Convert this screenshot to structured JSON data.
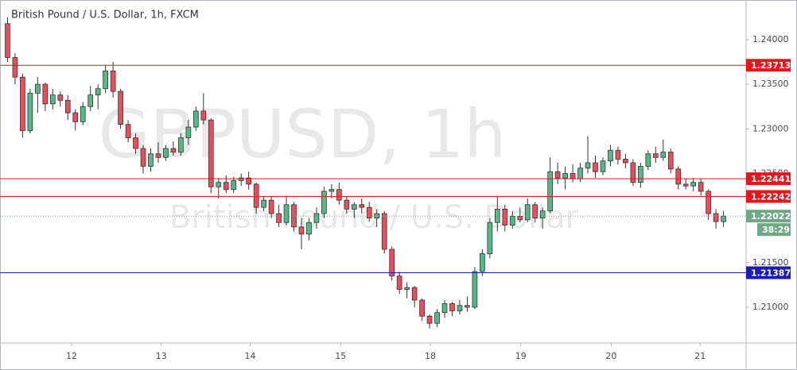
{
  "chart_data": {
    "type": "candlestick",
    "title": "British Pound / U.S. Dollar, 1h, FXCM",
    "watermark": "GBPUSD, 1h",
    "watermark_subtitle": "British Pound / U.S. Dollar",
    "up_color": "#53b987",
    "down_color": "#eb4d5c",
    "candles": [
      [
        1.2418,
        1.2425,
        1.2375,
        1.238
      ],
      [
        1.238,
        1.2385,
        1.235,
        1.2358
      ],
      [
        1.2358,
        1.2362,
        1.229,
        1.2298
      ],
      [
        1.2298,
        1.2345,
        1.2295,
        1.234
      ],
      [
        1.234,
        1.2358,
        1.2318,
        1.235
      ],
      [
        1.235,
        1.2352,
        1.232,
        1.2328
      ],
      [
        1.2328,
        1.2345,
        1.2322,
        1.2338
      ],
      [
        1.2338,
        1.2342,
        1.2325,
        1.2332
      ],
      [
        1.2332,
        1.2338,
        1.231,
        1.2318
      ],
      [
        1.2318,
        1.2322,
        1.2298,
        1.2308
      ],
      [
        1.2308,
        1.233,
        1.2304,
        1.2325
      ],
      [
        1.2325,
        1.2348,
        1.232,
        1.2338
      ],
      [
        1.2338,
        1.235,
        1.2322,
        1.2345
      ],
      [
        1.2345,
        1.2372,
        1.234,
        1.2365
      ],
      [
        1.2365,
        1.2375,
        1.2335,
        1.2342
      ],
      [
        1.2342,
        1.2345,
        1.23,
        1.2305
      ],
      [
        1.2305,
        1.231,
        1.2285,
        1.229
      ],
      [
        1.229,
        1.2295,
        1.2272,
        1.2278
      ],
      [
        1.2278,
        1.2282,
        1.225,
        1.2258
      ],
      [
        1.2258,
        1.2278,
        1.2252,
        1.2272
      ],
      [
        1.2272,
        1.2285,
        1.2262,
        1.2268
      ],
      [
        1.2268,
        1.2282,
        1.2264,
        1.2278
      ],
      [
        1.2278,
        1.2286,
        1.227,
        1.2274
      ],
      [
        1.2274,
        1.2295,
        1.227,
        1.229
      ],
      [
        1.229,
        1.231,
        1.2282,
        1.2302
      ],
      [
        1.2302,
        1.2325,
        1.2298,
        1.232
      ],
      [
        1.232,
        1.234,
        1.2305,
        1.231
      ],
      [
        1.231,
        1.2312,
        1.2228,
        1.2235
      ],
      [
        1.2235,
        1.2245,
        1.2222,
        1.224
      ],
      [
        1.224,
        1.2248,
        1.2228,
        1.2232
      ],
      [
        1.2232,
        1.2246,
        1.2228,
        1.2242
      ],
      [
        1.2242,
        1.225,
        1.2236,
        1.2245
      ],
      [
        1.2245,
        1.2252,
        1.2232,
        1.2238
      ],
      [
        1.2238,
        1.224,
        1.2205,
        1.2212
      ],
      [
        1.2212,
        1.2225,
        1.2208,
        1.222
      ],
      [
        1.222,
        1.2224,
        1.22,
        1.2205
      ],
      [
        1.2205,
        1.2215,
        1.219,
        1.2195
      ],
      [
        1.2195,
        1.2225,
        1.2192,
        1.2215
      ],
      [
        1.2215,
        1.2218,
        1.2185,
        1.219
      ],
      [
        1.219,
        1.22,
        1.2165,
        1.2182
      ],
      [
        1.2182,
        1.22,
        1.2175,
        1.2195
      ],
      [
        1.2195,
        1.2212,
        1.2188,
        1.2205
      ],
      [
        1.2205,
        1.2235,
        1.22,
        1.223
      ],
      [
        1.223,
        1.2238,
        1.2222,
        1.2232
      ],
      [
        1.2232,
        1.224,
        1.2215,
        1.222
      ],
      [
        1.222,
        1.2224,
        1.2205,
        1.221
      ],
      [
        1.221,
        1.2218,
        1.22,
        1.2215
      ],
      [
        1.2215,
        1.2222,
        1.2205,
        1.2212
      ],
      [
        1.2212,
        1.2218,
        1.2196,
        1.22
      ],
      [
        1.22,
        1.221,
        1.219,
        1.2205
      ],
      [
        1.2205,
        1.2208,
        1.216,
        1.2165
      ],
      [
        1.2165,
        1.2168,
        1.213,
        1.2135
      ],
      [
        1.2135,
        1.214,
        1.2115,
        1.212
      ],
      [
        1.212,
        1.2128,
        1.211,
        1.2122
      ],
      [
        1.2122,
        1.2124,
        1.21,
        1.2108
      ],
      [
        1.2108,
        1.211,
        1.2085,
        1.209
      ],
      [
        1.209,
        1.2092,
        1.2076,
        1.2082
      ],
      [
        1.2082,
        1.2098,
        1.2078,
        1.2094
      ],
      [
        1.2094,
        1.2108,
        1.2088,
        1.2104
      ],
      [
        1.2104,
        1.2106,
        1.209,
        1.2096
      ],
      [
        1.2096,
        1.2108,
        1.2092,
        1.2102
      ],
      [
        1.2102,
        1.2112,
        1.2095,
        1.21
      ],
      [
        1.21,
        1.2145,
        1.2098,
        1.214
      ],
      [
        1.214,
        1.2165,
        1.2135,
        1.216
      ],
      [
        1.216,
        1.22,
        1.2155,
        1.2195
      ],
      [
        1.2195,
        1.2225,
        1.2185,
        1.221
      ],
      [
        1.221,
        1.2215,
        1.2185,
        1.2192
      ],
      [
        1.2192,
        1.2208,
        1.2188,
        1.2202
      ],
      [
        1.2202,
        1.2212,
        1.2195,
        1.2198
      ],
      [
        1.2198,
        1.2222,
        1.2195,
        1.2215
      ],
      [
        1.2215,
        1.2218,
        1.2195,
        1.22
      ],
      [
        1.22,
        1.2212,
        1.2188,
        1.2208
      ],
      [
        1.2208,
        1.2268,
        1.2205,
        1.2252
      ],
      [
        1.2252,
        1.2262,
        1.2238,
        1.2245
      ],
      [
        1.2245,
        1.2258,
        1.2232,
        1.225
      ],
      [
        1.225,
        1.226,
        1.224,
        1.2244
      ],
      [
        1.2244,
        1.2262,
        1.224,
        1.2256
      ],
      [
        1.2256,
        1.2292,
        1.225,
        1.2262
      ],
      [
        1.2262,
        1.227,
        1.2245,
        1.2252
      ],
      [
        1.2252,
        1.2268,
        1.2248,
        1.2264
      ],
      [
        1.2264,
        1.2282,
        1.2258,
        1.2276
      ],
      [
        1.2276,
        1.228,
        1.226,
        1.2266
      ],
      [
        1.2266,
        1.2272,
        1.2256,
        1.2262
      ],
      [
        1.2262,
        1.2266,
        1.2236,
        1.224
      ],
      [
        1.224,
        1.2262,
        1.2234,
        1.2258
      ],
      [
        1.2258,
        1.2276,
        1.2254,
        1.2272
      ],
      [
        1.2272,
        1.228,
        1.2262,
        1.2268
      ],
      [
        1.2268,
        1.2288,
        1.2264,
        1.2274
      ],
      [
        1.2274,
        1.2278,
        1.225,
        1.2255
      ],
      [
        1.2255,
        1.2258,
        1.2232,
        1.2238
      ],
      [
        1.2238,
        1.2244,
        1.2232,
        1.2236
      ],
      [
        1.2236,
        1.2245,
        1.223,
        1.224
      ],
      [
        1.224,
        1.2244,
        1.2225,
        1.223
      ],
      [
        1.223,
        1.2232,
        1.2198,
        1.2205
      ],
      [
        1.2205,
        1.221,
        1.2188,
        1.2196
      ],
      [
        1.2196,
        1.2208,
        1.219,
        1.22022
      ]
    ],
    "xlim": [
      -1,
      98
    ],
    "xticks": [
      {
        "value": 8.5,
        "label": "12"
      },
      {
        "value": 20.4,
        "label": "13"
      },
      {
        "value": 32.2,
        "label": "14"
      },
      {
        "value": 44.2,
        "label": "15"
      },
      {
        "value": 56.1,
        "label": "18"
      },
      {
        "value": 68.1,
        "label": "19"
      },
      {
        "value": 80.1,
        "label": "20"
      },
      {
        "value": 91.9,
        "label": "21"
      }
    ],
    "ylim": [
      1.20599,
      1.24445
    ],
    "yticks": [
      {
        "value": 1.24,
        "label": "1.24000"
      },
      {
        "value": 1.235,
        "label": "1.23500"
      },
      {
        "value": 1.23,
        "label": "1.23000"
      },
      {
        "value": 1.225,
        "label": "1.22500"
      },
      {
        "value": 1.215,
        "label": "1.21500"
      },
      {
        "value": 1.21,
        "label": "1.21000"
      }
    ],
    "levels": [
      {
        "value": 1.23713,
        "label": "1.23713",
        "color": "#e4171c"
      },
      {
        "value": 1.22441,
        "label": "1.22441",
        "color": "#e4171c"
      },
      {
        "value": 1.22242,
        "label": "1.22242",
        "color": "#e4171c"
      },
      {
        "value": 1.21387,
        "label": "1.21387",
        "color": "#1c1cb4"
      }
    ],
    "last_price": {
      "value": 1.22022,
      "label": "1.22022",
      "color": "#6fa885",
      "countdown": "38:29"
    }
  }
}
